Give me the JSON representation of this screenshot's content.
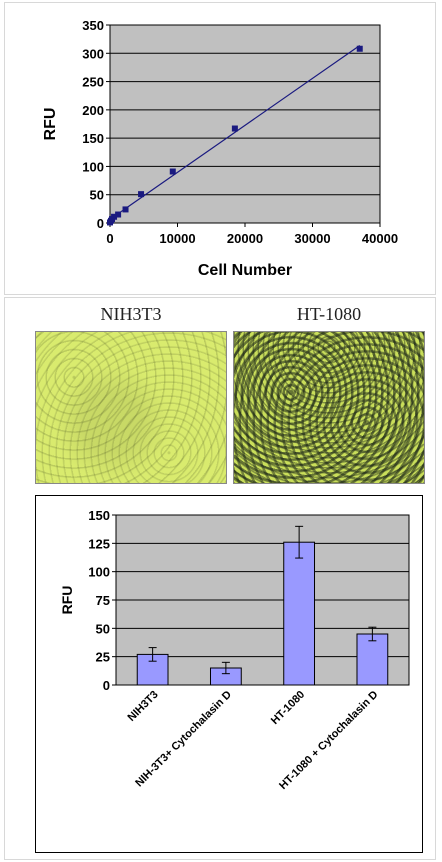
{
  "chart_data": [
    {
      "type": "line",
      "title": "",
      "xlabel": "Cell Number",
      "ylabel": "RFU",
      "xlim": [
        0,
        40000
      ],
      "ylim": [
        0,
        350
      ],
      "x_ticks": [
        "0",
        "10000",
        "20000",
        "30000",
        "40000"
      ],
      "y_ticks": [
        "0",
        "50",
        "100",
        "150",
        "200",
        "250",
        "300",
        "350"
      ],
      "grid": true,
      "x": [
        0,
        150,
        300,
        600,
        1200,
        2300,
        4600,
        9300,
        18500,
        37000
      ],
      "values": [
        1,
        4,
        7,
        11,
        15,
        24,
        51,
        91,
        167,
        308
      ],
      "marker_color": "#1a1a80",
      "line_color": "#1a1a80",
      "plot_bg": "#c0c0c0"
    },
    {
      "type": "bar",
      "title": "",
      "ylabel": "RFU",
      "ylim": [
        0,
        150
      ],
      "y_ticks": [
        "0",
        "25",
        "50",
        "75",
        "100",
        "125",
        "150"
      ],
      "categories": [
        "NIH3T3",
        "NIH-3T3+ Cytochalasin D",
        "HT-1080",
        "HT-1080 + Cytochalasin D"
      ],
      "values": [
        27,
        15,
        126,
        45
      ],
      "errors": [
        6,
        5,
        14,
        6
      ],
      "bar_color": "#9999ff",
      "plot_bg": "#c0c0c0",
      "grid": true
    }
  ],
  "images": {
    "left_title": "NIH3T3",
    "right_title": "HT-1080"
  }
}
